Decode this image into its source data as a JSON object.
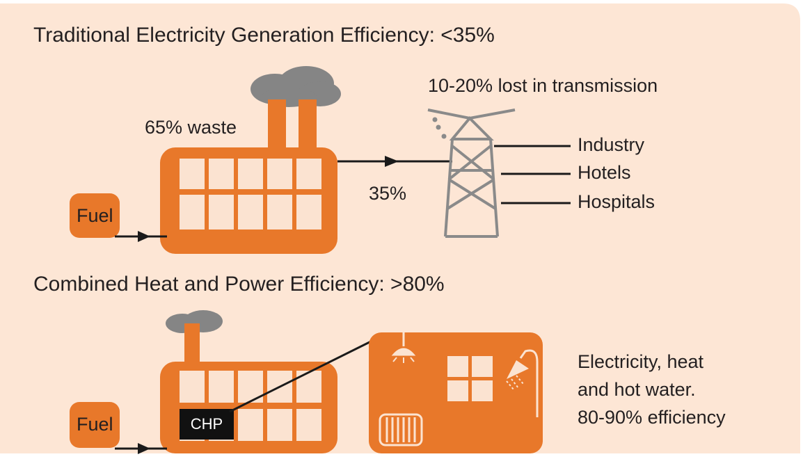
{
  "traditional": {
    "title": "Traditional Electricity Generation Efficiency: <35%",
    "waste_label": "65% waste",
    "fuel_label": "Fuel",
    "output_label": "35%",
    "transmission_label": "10-20% lost in transmission",
    "consumers": [
      "Industry",
      "Hotels",
      "Hospitals"
    ]
  },
  "chp": {
    "title": "Combined Heat and Power Efficiency: >80%",
    "fuel_label": "Fuel",
    "plant_label": "CHP",
    "description": [
      "Electricity, heat",
      "and hot water.",
      "80-90% efficiency"
    ]
  }
}
